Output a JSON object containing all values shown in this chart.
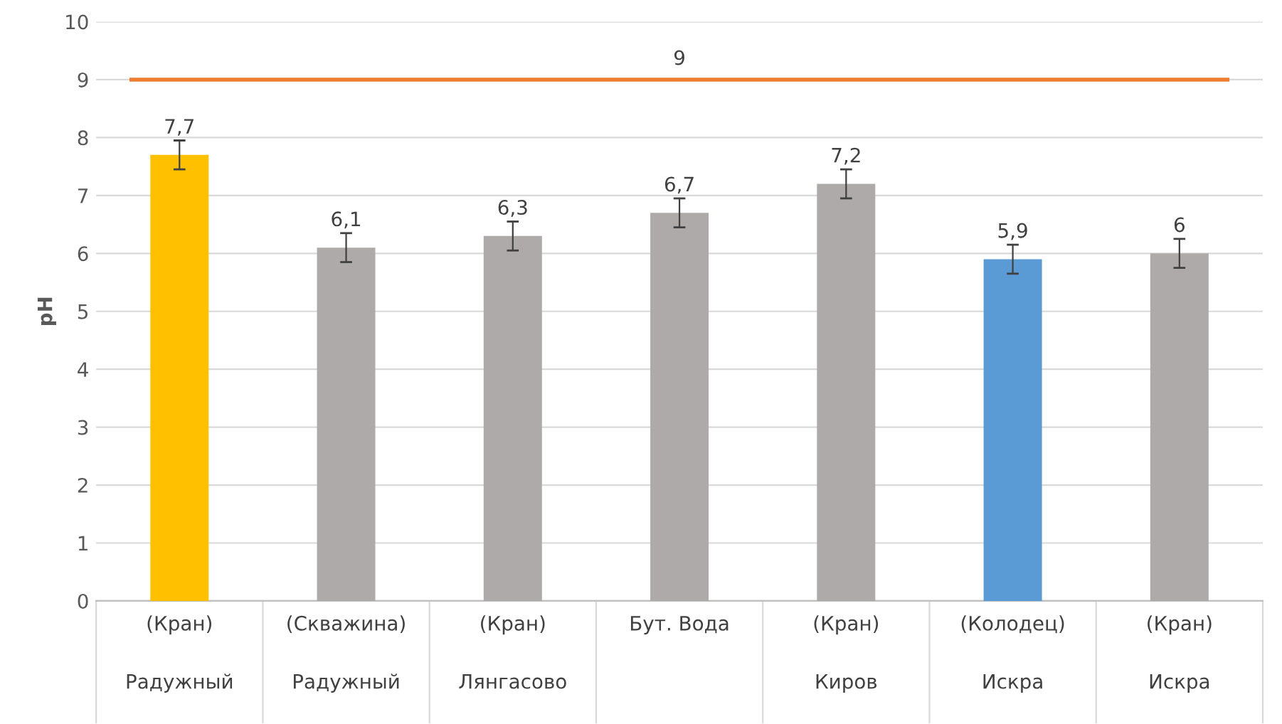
{
  "chart_data": {
    "type": "bar",
    "ylabel": "pH",
    "categories": [
      "(Кран)\nРадужный",
      "(Скважина)\nРадужный",
      "(Кран)\nЛянгасово",
      "Бут. Вода",
      "(Кран)\nКиров",
      "(Колодец)\nИскра",
      "(Кран)\nИскра"
    ],
    "values": [
      7.7,
      6.1,
      6.3,
      6.7,
      7.2,
      5.9,
      6.0
    ],
    "value_labels": [
      "7,7",
      "6,1",
      "6,3",
      "6,7",
      "7,2",
      "5,9",
      "6"
    ],
    "colors": [
      "#ffc000",
      "#aeaaaa",
      "#aeaaaa",
      "#aeaaaa",
      "#aeaaaa",
      "#5b9bd5",
      "#aeaaaa"
    ],
    "errors": [
      0.25,
      0.25,
      0.25,
      0.25,
      0.25,
      0.25,
      0.25
    ],
    "ref_lines": [
      {
        "axis": "y",
        "value": 9,
        "label": "9",
        "color": "#ed7d31"
      }
    ],
    "ylim": [
      0,
      10
    ],
    "yticks": [
      0,
      1,
      2,
      3,
      4,
      5,
      6,
      7,
      8,
      9,
      10
    ],
    "grid": "y",
    "legend": false
  }
}
